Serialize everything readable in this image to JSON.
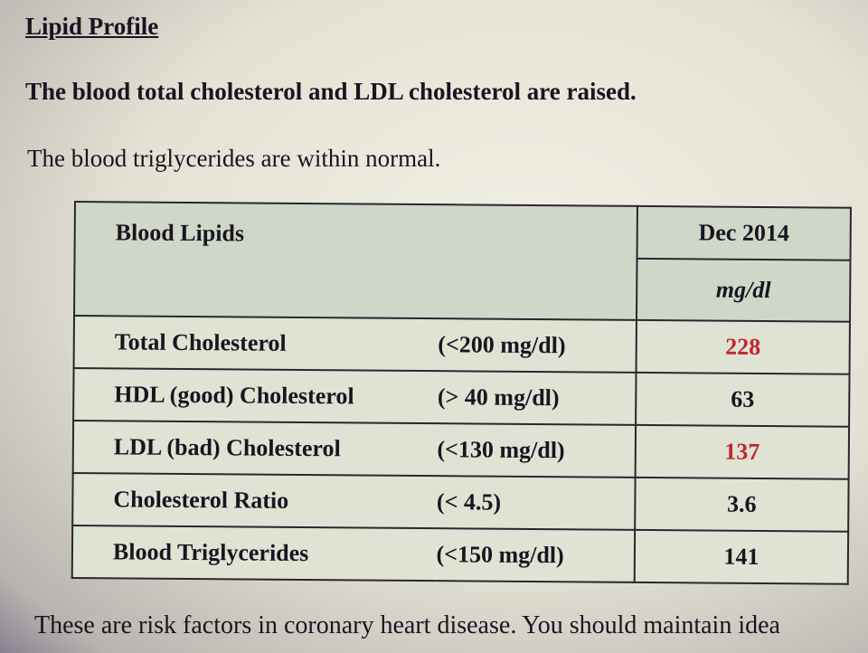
{
  "title": "Lipid Profile",
  "summary_bold": "The blood total cholesterol and LDL cholesterol are raised.",
  "summary_normal": "The blood triglycerides are within normal.",
  "table": {
    "header": "Blood Lipids",
    "date": "Dec 2014",
    "unit": "mg/dl",
    "rows": [
      {
        "name": "Total Cholesterol",
        "range": "(<200 mg/dl)",
        "value": "228",
        "flag": "high"
      },
      {
        "name": "HDL (good) Cholesterol",
        "range": "(> 40 mg/dl)",
        "value": "63",
        "flag": "normal"
      },
      {
        "name": "LDL (bad) Cholesterol",
        "range": "(<130 mg/dl)",
        "value": "137",
        "flag": "high"
      },
      {
        "name": "Cholesterol Ratio",
        "range": "(< 4.5)",
        "value": "3.6",
        "flag": "normal"
      },
      {
        "name": "Blood Triglycerides",
        "range": "(<150 mg/dl)",
        "value": "141",
        "flag": "normal"
      }
    ]
  },
  "footer": "These are risk factors in coronary heart disease. You should maintain idea",
  "colors": {
    "high": "#c0262e"
  }
}
